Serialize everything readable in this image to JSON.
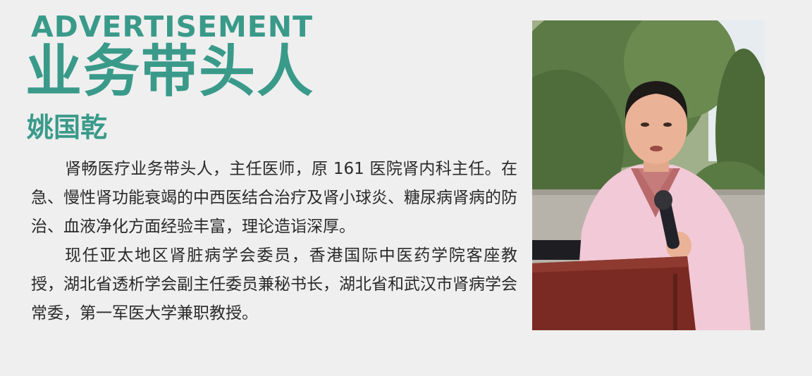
{
  "ad": {
    "label": "ADVERTISEMENT",
    "headline": "业务带头人",
    "name": "姚国乾"
  },
  "bio": {
    "paragraphs": [
      "肾畅医疗业务带头人，主任医师，原 161 医院肾内科主任。在急、慢性肾功能衰竭的中西医结合治疗及肾小球炎、糖尿病肾病的防治、血液净化方面经验丰富，理论造诣深厚。",
      "现任亚太地区肾脏病学会委员，香港国际中医药学院客座教授，湖北省透析学会副主任委员兼秘书长，湖北省和武汉市肾病学会常委，第一军医大学兼职教授。"
    ]
  },
  "photo": {
    "subject": "doctor-speaking-at-podium",
    "colors": {
      "coat": "#f2c9d6",
      "podium": "#7a2a22",
      "foliage": "#5c7a45"
    }
  }
}
